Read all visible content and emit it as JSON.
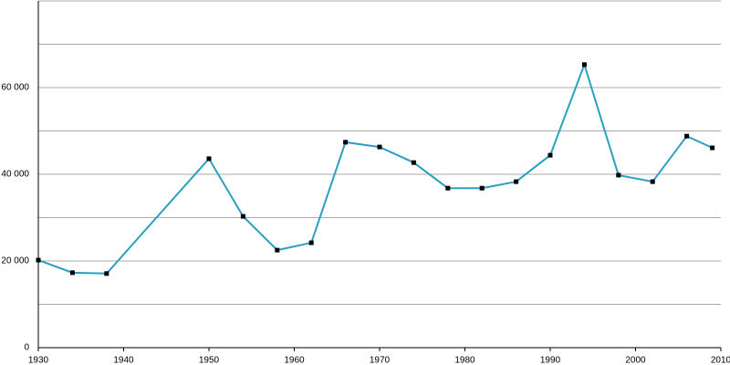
{
  "chart_data": {
    "type": "line",
    "x": [
      1930,
      1934,
      1938,
      1950,
      1954,
      1958,
      1962,
      1966,
      1970,
      1974,
      1978,
      1982,
      1986,
      1990,
      1994,
      1998,
      2002,
      2006,
      2009
    ],
    "series": [
      {
        "color": "#2aa0c0",
        "values": [
          20200,
          17300,
          17100,
          43600,
          30300,
          22500,
          24200,
          47400,
          46300,
          42700,
          36800,
          36800,
          38300,
          44400,
          65300,
          39800,
          38300,
          48800,
          46100
        ]
      }
    ],
    "xlim": [
      1930,
      2010
    ],
    "xticks": [
      1930,
      1940,
      1950,
      1960,
      1970,
      1980,
      1990,
      2000,
      2010
    ],
    "ylim": [
      0,
      80000
    ],
    "yticks": [
      0,
      {
        "value": 20000,
        "label": "20 000"
      },
      {
        "value": 40000,
        "label": "40 000"
      },
      {
        "value": 60000,
        "label": "60 000"
      }
    ],
    "yminor": [
      10000,
      30000,
      50000,
      70000,
      80000
    ],
    "grid": true
  }
}
